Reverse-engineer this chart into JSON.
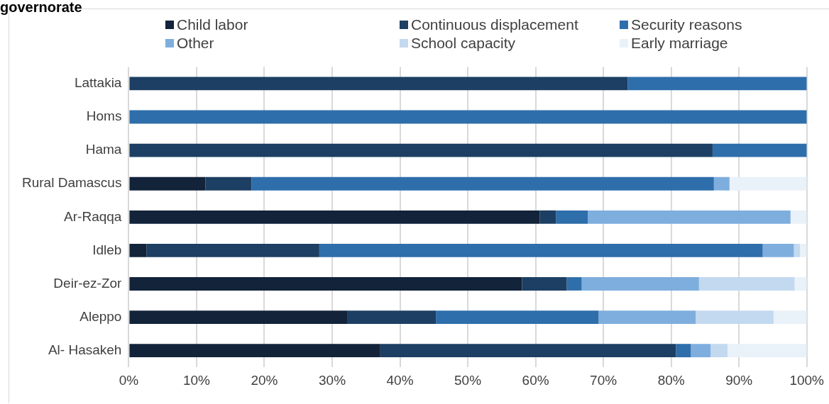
{
  "chart_data": {
    "type": "bar",
    "title": "governorate",
    "orientation": "horizontal",
    "stacked": true,
    "legend": "top",
    "grid": "x",
    "categories": [
      "Lattakia",
      "Homs",
      "Hama",
      "Rural Damascus",
      "Ar-Raqqa",
      "Idleb",
      "Deir-ez-Zor",
      "Aleppo",
      "Al- Hasakeh"
    ],
    "series": [
      {
        "name": "Child labor",
        "color": "#12233a",
        "values": [
          0,
          0,
          0,
          11.3,
          60.6,
          2.6,
          58.0,
          32.2,
          37.1
        ]
      },
      {
        "name": "Continuous displacement",
        "color": "#1c3f63",
        "values": [
          73.6,
          0,
          86.1,
          6.8,
          2.4,
          25.5,
          6.6,
          13.1,
          43.6
        ]
      },
      {
        "name": "Security reasons",
        "color": "#2e6eab",
        "values": [
          26.4,
          100,
          13.9,
          68.2,
          4.7,
          65.4,
          2.2,
          24.0,
          2.2
        ]
      },
      {
        "name": "Other",
        "color": "#7eaede",
        "values": [
          0,
          0,
          0,
          2.3,
          29.9,
          4.6,
          17.3,
          14.3,
          2.9
        ]
      },
      {
        "name": "School capacity",
        "color": "#c3d9ef",
        "values": [
          0,
          0,
          0,
          0,
          0,
          0.9,
          14.1,
          11.5,
          2.5
        ]
      },
      {
        "name": "Early marriage",
        "color": "#e9f1f9",
        "values": [
          0,
          0,
          0,
          11.4,
          2.4,
          1.0,
          1.8,
          4.9,
          11.7
        ]
      }
    ],
    "xlim": [
      0,
      100
    ],
    "xticks": [
      {
        "value": 0,
        "label": "0%"
      },
      {
        "value": 10,
        "label": "10%"
      },
      {
        "value": 20,
        "label": "20%"
      },
      {
        "value": 30,
        "label": "30%"
      },
      {
        "value": 40,
        "label": "40%"
      },
      {
        "value": 50,
        "label": "50%"
      },
      {
        "value": 60,
        "label": "60%"
      },
      {
        "value": 70,
        "label": "70%"
      },
      {
        "value": 80,
        "label": "80%"
      },
      {
        "value": 90,
        "label": "90%"
      },
      {
        "value": 100,
        "label": "100%"
      }
    ]
  }
}
